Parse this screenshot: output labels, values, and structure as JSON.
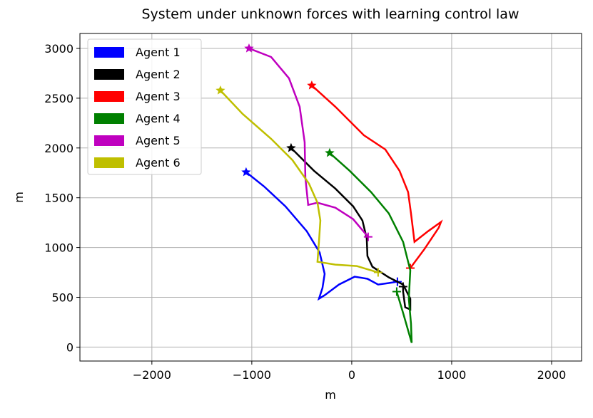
{
  "chart_data": {
    "type": "line",
    "title": "System under unknown forces with learning control law",
    "x_label": "m",
    "y_label": "m",
    "grid": true,
    "legend": "upper left",
    "start_marker": "star",
    "end_marker": "plus",
    "xlim": [
      -2720,
      2300
    ],
    "ylim": [
      -140,
      3150
    ],
    "xticks": [
      {
        "value": -2000,
        "label": "−2000"
      },
      {
        "value": -1000,
        "label": "−1000"
      },
      0,
      1000,
      2000
    ],
    "yticks": [
      0,
      500,
      1000,
      1500,
      2000,
      2500,
      3000
    ],
    "series": [
      {
        "name": "Agent 1",
        "color": "#0000ff",
        "x": [
          -1057,
          -878,
          -664,
          -450,
          -321,
          -271,
          -293,
          -328,
          -271,
          -128,
          29,
          157,
          264,
          371,
          457
        ],
        "values": [
          1757,
          1614,
          1414,
          1164,
          950,
          735,
          593,
          486,
          521,
          628,
          707,
          686,
          628,
          643,
          657
        ]
      },
      {
        "name": "Agent 2",
        "color": "#000000",
        "x": [
          -607,
          -378,
          -164,
          14,
          107,
          150,
          157,
          207,
          371,
          514,
          586,
          586,
          535,
          514,
          514
        ],
        "values": [
          2000,
          1771,
          1592,
          1414,
          1271,
          1092,
          914,
          807,
          700,
          628,
          486,
          378,
          400,
          557,
          607
        ]
      },
      {
        "name": "Agent 3",
        "color": "#ff0000",
        "x": [
          -400,
          -164,
          121,
          336,
          478,
          564,
          593,
          628,
          764,
          893,
          871,
          728,
          586
        ],
        "values": [
          2628,
          2414,
          2128,
          1985,
          1771,
          1557,
          1343,
          1057,
          1164,
          1257,
          1200,
          985,
          793
        ]
      },
      {
        "name": "Agent 4",
        "color": "#008000",
        "x": [
          -221,
          -21,
          193,
          371,
          514,
          586,
          571,
          593,
          600,
          514,
          450
        ],
        "values": [
          1950,
          1771,
          1557,
          1343,
          1057,
          771,
          486,
          236,
          43,
          343,
          557
        ]
      },
      {
        "name": "Agent 5",
        "color": "#bf00bf",
        "x": [
          -1028,
          -807,
          -628,
          -521,
          -471,
          -464,
          -436,
          -343,
          -164,
          14,
          164
        ],
        "values": [
          3000,
          2914,
          2700,
          2414,
          2057,
          1700,
          1428,
          1450,
          1400,
          1285,
          1107
        ]
      },
      {
        "name": "Agent 6",
        "color": "#bfbf00",
        "x": [
          -1314,
          -1092,
          -807,
          -593,
          -428,
          -343,
          -314,
          -328,
          -343,
          -164,
          50,
          264
        ],
        "values": [
          2578,
          2342,
          2092,
          1878,
          1642,
          1450,
          1271,
          1057,
          857,
          828,
          814,
          750
        ]
      }
    ]
  }
}
